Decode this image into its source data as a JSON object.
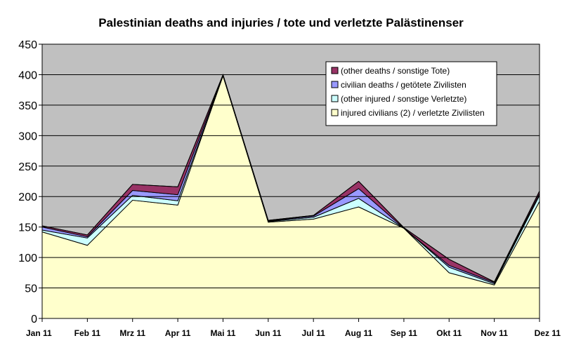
{
  "chart_data": {
    "type": "area",
    "stacked": true,
    "title": "Palestinian deaths and injuries / tote und verletzte Palästinenser",
    "xlabel": "",
    "ylabel": "",
    "categories": [
      "Jan 11",
      "Feb 11",
      "Mrz 11",
      "Apr 11",
      "Mai 11",
      "Jun 11",
      "Jul 11",
      "Aug 11",
      "Sep 11",
      "Okt 11",
      "Nov 11",
      "Dez 11"
    ],
    "ylim": [
      0,
      450
    ],
    "yticks": [
      0,
      50,
      100,
      150,
      200,
      250,
      300,
      350,
      400,
      450
    ],
    "grid": true,
    "legend_position": "top-right",
    "series": [
      {
        "name": "injured civilians (2) / verletzte Zivilisten",
        "color": "#ffffcc",
        "values": [
          142,
          120,
          194,
          186,
          398,
          158,
          163,
          183,
          148,
          75,
          55,
          192
        ]
      },
      {
        "name": "(other injured / sonstige Verletzte)",
        "color": "#ccffff",
        "values": [
          3,
          12,
          8,
          7,
          0,
          1,
          3,
          14,
          0,
          9,
          2,
          10
        ]
      },
      {
        "name": "civilian deaths / getötete Zivilisten",
        "color": "#9999ff",
        "values": [
          5,
          2,
          8,
          10,
          1,
          1,
          2,
          16,
          0,
          3,
          2,
          3
        ]
      },
      {
        "name": "(other deaths / sonstige Tote)",
        "color": "#993366",
        "values": [
          2,
          3,
          10,
          13,
          1,
          1,
          1,
          12,
          1,
          10,
          1,
          4
        ]
      }
    ],
    "legend_order": [
      3,
      2,
      1,
      0
    ]
  },
  "colors": {
    "plot_background": "#c0c0c0",
    "gridline": "#000000",
    "outline": "#000000"
  }
}
